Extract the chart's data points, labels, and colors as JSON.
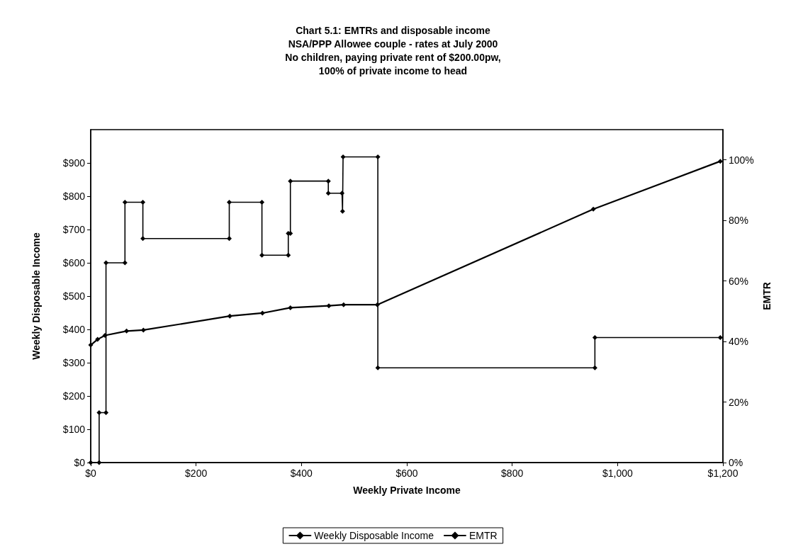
{
  "chart_data": {
    "type": "line",
    "title": "Chart 5.1: EMTRs and disposable income\nNSA/PPP Allowee couple - rates at July 2000\nNo children, paying private rent of $200.00pw,\n100% of private income to head",
    "xlabel": "Weekly Private Income",
    "ylabel": "Weekly Disposable Income",
    "y2label": "EMTR",
    "xlim": [
      0,
      1200
    ],
    "xticks": [
      {
        "value": 0,
        "label": "$0"
      },
      {
        "value": 200,
        "label": "$200"
      },
      {
        "value": 400,
        "label": "$400"
      },
      {
        "value": 600,
        "label": "$600"
      },
      {
        "value": 800,
        "label": "$800"
      },
      {
        "value": 1000,
        "label": "$1,000"
      },
      {
        "value": 1200,
        "label": "$1,200"
      }
    ],
    "ylim": [
      0,
      1000
    ],
    "yticks": [
      {
        "value": 0,
        "label": "$0"
      },
      {
        "value": 100,
        "label": "$100"
      },
      {
        "value": 200,
        "label": "$200"
      },
      {
        "value": 300,
        "label": "$300"
      },
      {
        "value": 400,
        "label": "$400"
      },
      {
        "value": 500,
        "label": "$500"
      },
      {
        "value": 600,
        "label": "$600"
      },
      {
        "value": 700,
        "label": "$700"
      },
      {
        "value": 800,
        "label": "$800"
      },
      {
        "value": 900,
        "label": "$900"
      }
    ],
    "y2lim": [
      0,
      110
    ],
    "y2ticks": [
      {
        "value": 0,
        "label": "0%"
      },
      {
        "value": 20,
        "label": "20%"
      },
      {
        "value": 40,
        "label": "40%"
      },
      {
        "value": 60,
        "label": "60%"
      },
      {
        "value": 80,
        "label": "80%"
      },
      {
        "value": 100,
        "label": "100%"
      }
    ],
    "series": [
      {
        "name": "Weekly Disposable Income",
        "color": "#000000",
        "x": [
          0,
          13,
          27,
          68,
          100,
          264,
          326,
          379,
          452,
          480,
          544,
          954,
          1195
        ],
        "values": [
          353,
          370,
          382,
          395,
          398,
          440,
          449,
          465,
          471,
          474,
          474,
          761,
          905
        ]
      },
      {
        "name": "EMTR",
        "color": "#000000",
        "axis": "y2",
        "x": [
          0,
          16,
          16,
          29,
          29,
          65,
          65,
          99,
          99,
          263,
          263,
          325,
          325,
          375,
          375,
          379,
          379,
          451,
          451,
          477,
          478,
          479,
          545,
          545,
          957,
          957,
          1195
        ],
        "values": [
          0,
          0,
          16.5,
          16.5,
          66,
          66,
          86,
          86,
          74,
          74,
          86,
          86,
          68.5,
          68.5,
          75.7,
          75.7,
          93,
          93,
          89,
          89,
          83,
          101,
          101,
          31.3,
          31.3,
          41.3,
          41.3
        ]
      }
    ],
    "marker": "diamond",
    "line_style": "solid",
    "grid": false,
    "legend": "bottom"
  }
}
